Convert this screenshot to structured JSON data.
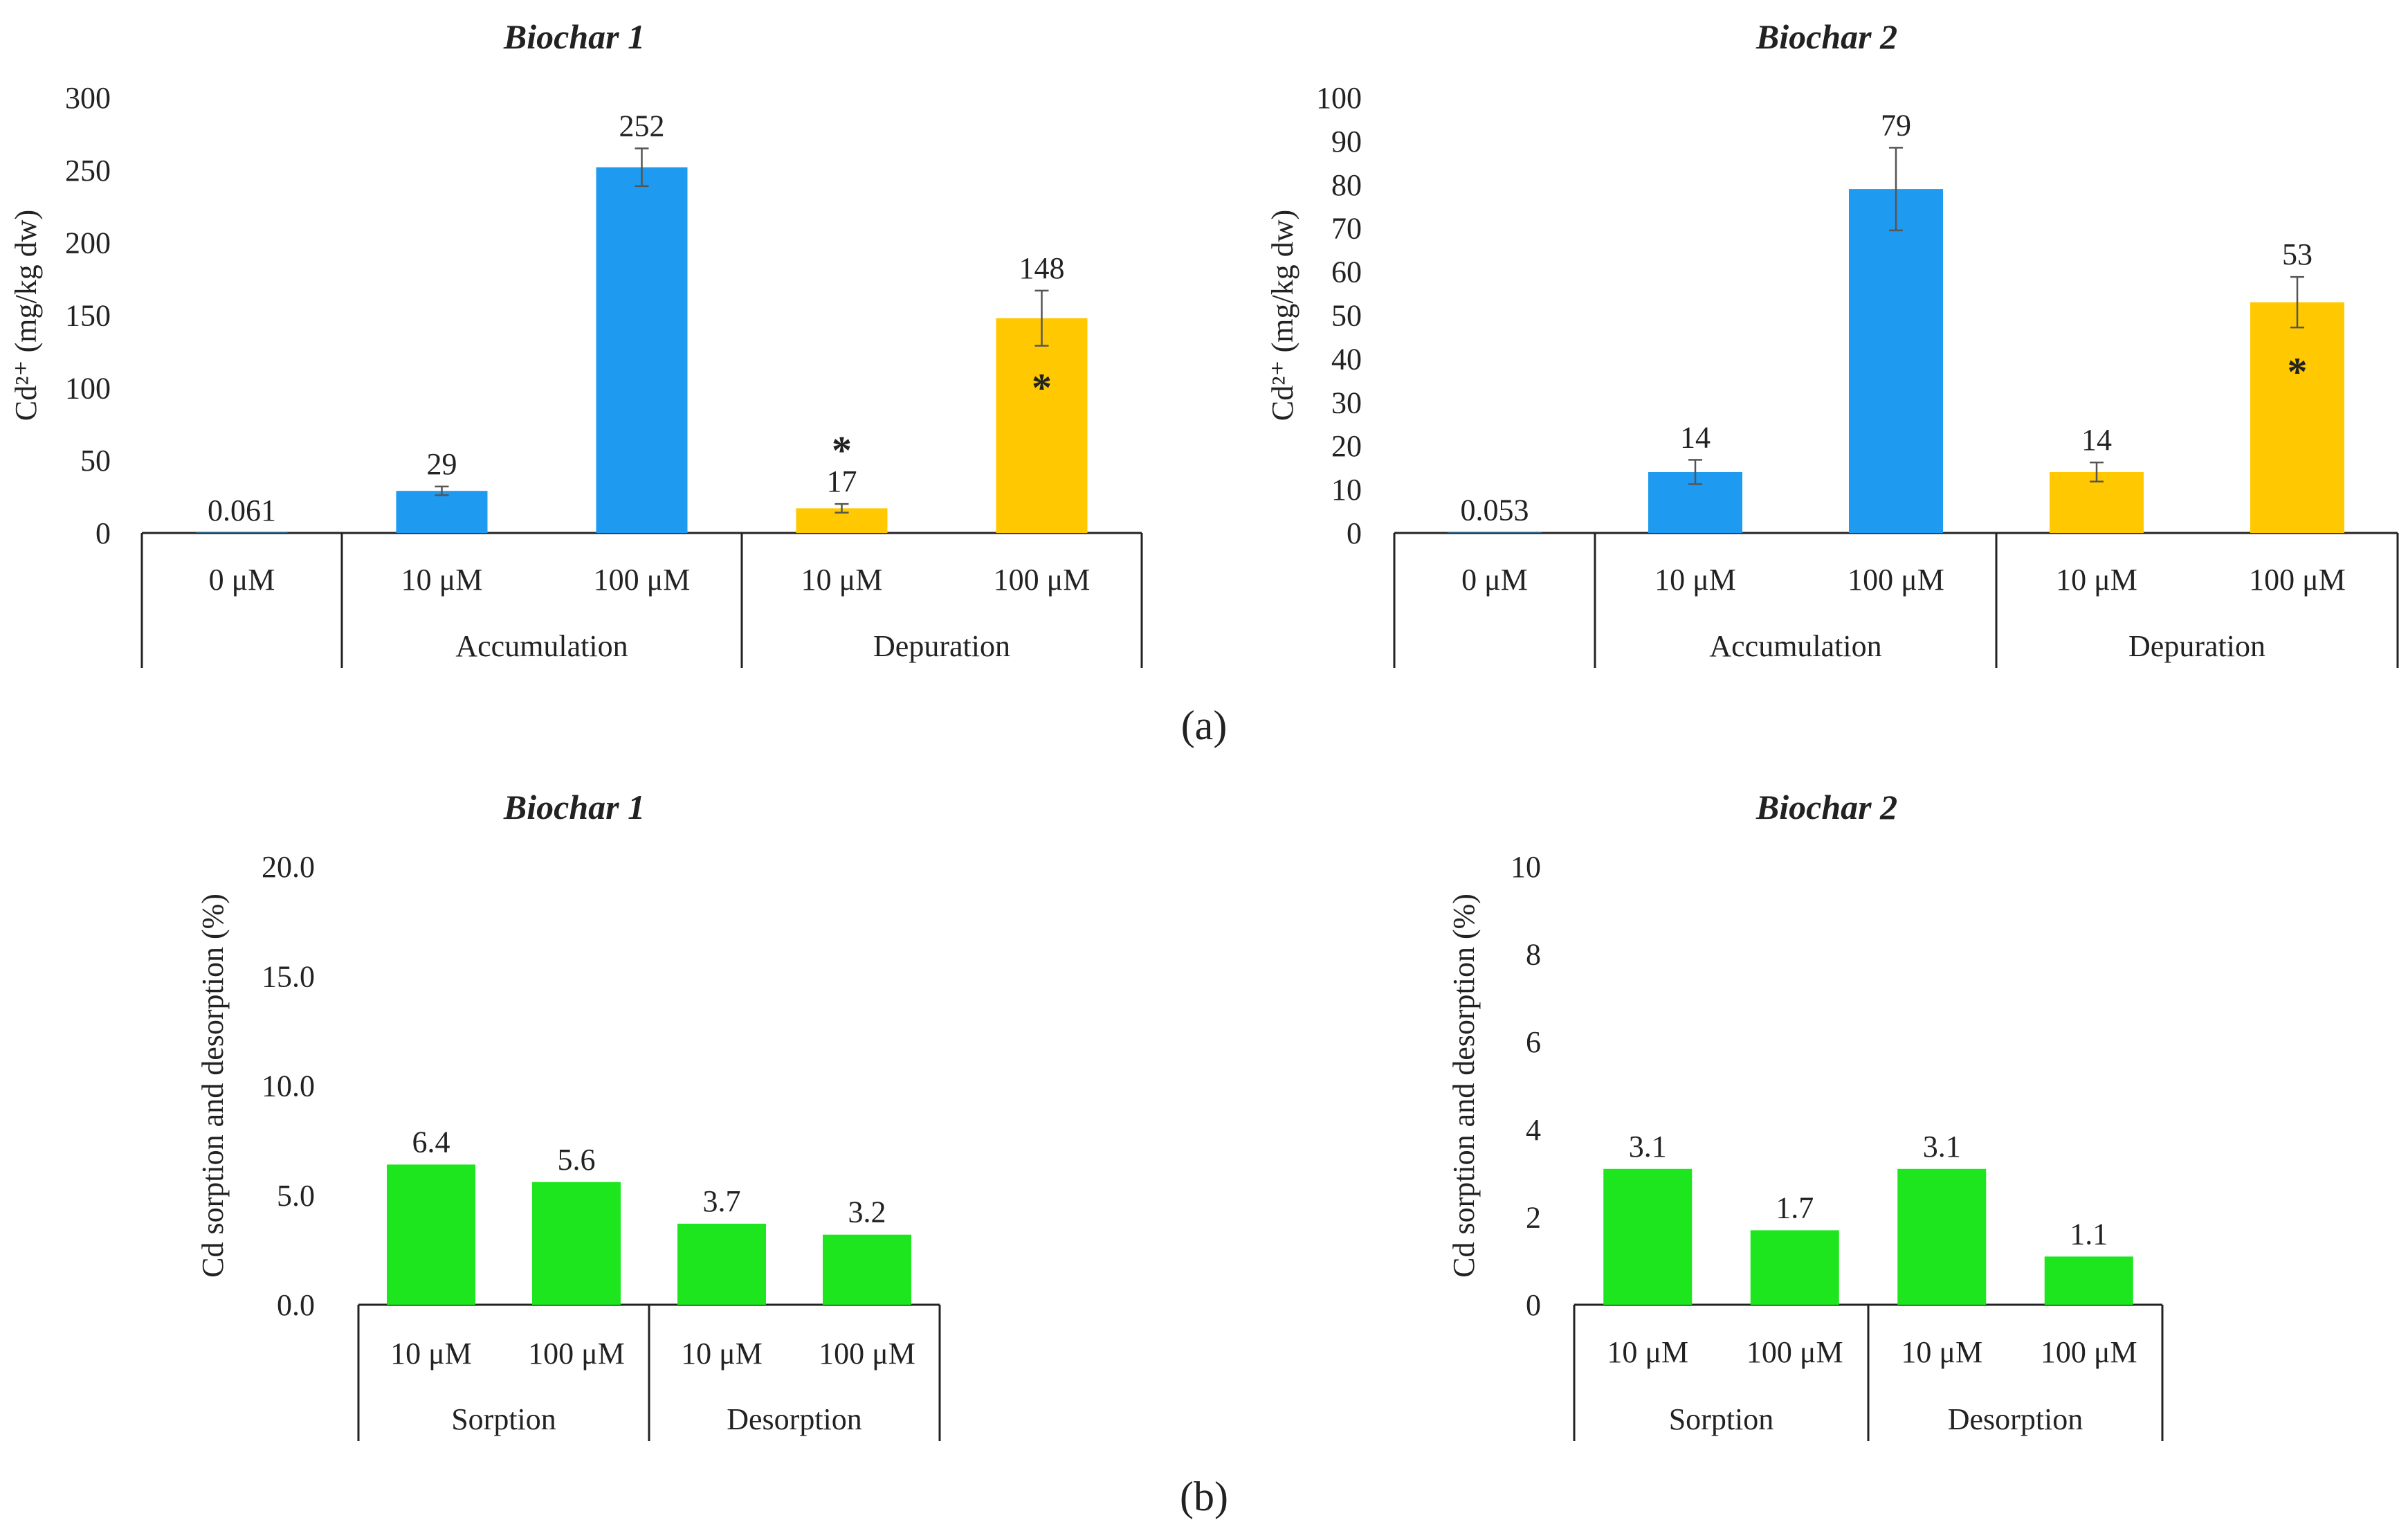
{
  "chart_data": [
    {
      "type": "bar",
      "panel": "a",
      "title": "Biochar 1",
      "ylabel": "Cd²⁺ (mg/kg dw)",
      "ylim": [
        0,
        300
      ],
      "yticks": [
        "0",
        "50",
        "100",
        "150",
        "200",
        "250",
        "300"
      ],
      "categories": [
        "0 μM",
        "10 μM",
        "100 μM",
        "10 μM",
        "100 μM"
      ],
      "groups": [
        {
          "label": "Accumulation",
          "span": [
            1,
            2
          ]
        },
        {
          "label": "Depuration",
          "span": [
            3,
            4
          ]
        }
      ],
      "values": [
        0.061,
        29,
        252,
        17,
        148
      ],
      "labels": [
        "0.061",
        "29",
        "252",
        "17",
        "148"
      ],
      "errors": [
        0,
        3,
        13,
        3,
        19
      ],
      "colors": [
        "#1e9bf0",
        "#1e9bf0",
        "#1e9bf0",
        "#ffc800",
        "#ffc800"
      ],
      "significance": [
        "",
        "",
        "",
        "*",
        "*"
      ],
      "significance_position": [
        "",
        "",
        "",
        "above",
        "inside"
      ]
    },
    {
      "type": "bar",
      "panel": "a",
      "title": "Biochar 2",
      "ylabel": "Cd²⁺ (mg/kg dw)",
      "ylim": [
        0,
        100
      ],
      "yticks": [
        "0",
        "10",
        "20",
        "30",
        "40",
        "50",
        "60",
        "70",
        "80",
        "90",
        "100"
      ],
      "categories": [
        "0 μM",
        "10 μM",
        "100 μM",
        "10 μM",
        "100 μM"
      ],
      "groups": [
        {
          "label": "Accumulation",
          "span": [
            1,
            2
          ]
        },
        {
          "label": "Depuration",
          "span": [
            3,
            4
          ]
        }
      ],
      "values": [
        0.053,
        14,
        79,
        14,
        53
      ],
      "labels": [
        "0.053",
        "14",
        "79",
        "14",
        "53"
      ],
      "errors": [
        0,
        2.8,
        9.5,
        2.2,
        5.8
      ],
      "colors": [
        "#1e9bf0",
        "#1e9bf0",
        "#1e9bf0",
        "#ffc800",
        "#ffc800"
      ],
      "significance": [
        "",
        "",
        "",
        "",
        "*"
      ],
      "significance_position": [
        "",
        "",
        "",
        "",
        "inside"
      ]
    },
    {
      "type": "bar",
      "panel": "b",
      "title": "Biochar 1",
      "ylabel": "Cd sorption and desorption (%)",
      "ylim": [
        0,
        20
      ],
      "yticks": [
        "0.0",
        "5.0",
        "10.0",
        "15.0",
        "20.0"
      ],
      "categories": [
        "10 μM",
        "100 μM",
        "10 μM",
        "100 μM"
      ],
      "groups": [
        {
          "label": "Sorption",
          "span": [
            0,
            1
          ]
        },
        {
          "label": "Desorption",
          "span": [
            2,
            3
          ]
        }
      ],
      "values": [
        6.4,
        5.6,
        3.7,
        3.2
      ],
      "labels": [
        "6.4",
        "5.6",
        "3.7",
        "3.2"
      ],
      "errors": [
        0,
        0,
        0,
        0
      ],
      "colors": [
        "#1ee61e",
        "#1ee61e",
        "#1ee61e",
        "#1ee61e"
      ],
      "significance": [
        "",
        "",
        "",
        ""
      ],
      "significance_position": [
        "",
        "",
        "",
        ""
      ]
    },
    {
      "type": "bar",
      "panel": "b",
      "title": "Biochar 2",
      "ylabel": "Cd sorption and desorption (%)",
      "ylim": [
        0,
        10
      ],
      "yticks": [
        "0",
        "2",
        "4",
        "6",
        "8",
        "10"
      ],
      "categories": [
        "10 μM",
        "100 μM",
        "10 μM",
        "100 μM"
      ],
      "groups": [
        {
          "label": "Sorption",
          "span": [
            0,
            1
          ]
        },
        {
          "label": "Desorption",
          "span": [
            2,
            3
          ]
        }
      ],
      "values": [
        3.1,
        1.7,
        3.1,
        1.1
      ],
      "labels": [
        "3.1",
        "1.7",
        "3.1",
        "1.1"
      ],
      "errors": [
        0,
        0,
        0,
        0
      ],
      "colors": [
        "#1ee61e",
        "#1ee61e",
        "#1ee61e",
        "#1ee61e"
      ],
      "significance": [
        "",
        "",
        "",
        ""
      ],
      "significance_position": [
        "",
        "",
        "",
        ""
      ]
    }
  ],
  "panel_labels": {
    "a": "(a)",
    "b": "(b)"
  }
}
